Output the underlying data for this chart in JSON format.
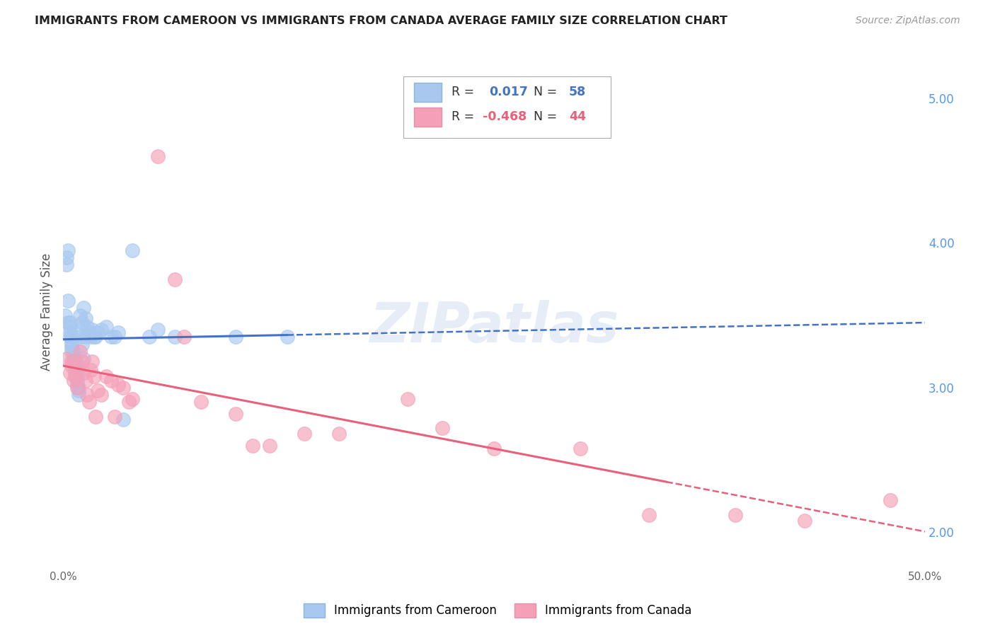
{
  "title": "IMMIGRANTS FROM CAMEROON VS IMMIGRANTS FROM CANADA AVERAGE FAMILY SIZE CORRELATION CHART",
  "source": "Source: ZipAtlas.com",
  "ylabel": "Average Family Size",
  "xlim": [
    0.0,
    0.5
  ],
  "ylim": [
    1.75,
    5.3
  ],
  "yticks": [
    2.0,
    3.0,
    4.0,
    5.0
  ],
  "xticks": [
    0.0,
    0.1,
    0.2,
    0.3,
    0.4,
    0.5
  ],
  "xtick_labels": [
    "0.0%",
    "",
    "",
    "",
    "",
    "50.0%"
  ],
  "ytick_labels_right": [
    "2.00",
    "3.00",
    "4.00",
    "5.00"
  ],
  "watermark": "ZIPatlas",
  "background_color": "#ffffff",
  "grid_color": "#d0d0d0",
  "cameroon_color": "#a8c8f0",
  "canada_color": "#f5a0b8",
  "cameroon_line_color": "#4472c4",
  "canada_line_color": "#e8607a",
  "R_cameroon": 0.017,
  "N_cameroon": 58,
  "R_canada": -0.468,
  "N_canada": 44,
  "cameroon_x": [
    0.001,
    0.002,
    0.002,
    0.003,
    0.003,
    0.003,
    0.004,
    0.004,
    0.004,
    0.004,
    0.005,
    0.005,
    0.005,
    0.005,
    0.005,
    0.006,
    0.006,
    0.006,
    0.006,
    0.007,
    0.007,
    0.007,
    0.007,
    0.008,
    0.008,
    0.008,
    0.008,
    0.009,
    0.009,
    0.009,
    0.01,
    0.01,
    0.01,
    0.011,
    0.011,
    0.012,
    0.012,
    0.013,
    0.013,
    0.014,
    0.015,
    0.016,
    0.017,
    0.018,
    0.019,
    0.02,
    0.022,
    0.025,
    0.028,
    0.03,
    0.032,
    0.035,
    0.04,
    0.05,
    0.055,
    0.065,
    0.1,
    0.13
  ],
  "cameroon_y": [
    3.5,
    3.85,
    3.9,
    3.95,
    3.6,
    3.45,
    3.45,
    3.42,
    3.38,
    3.35,
    3.35,
    3.32,
    3.3,
    3.28,
    3.25,
    3.25,
    3.22,
    3.2,
    3.18,
    3.18,
    3.15,
    3.12,
    3.1,
    3.1,
    3.08,
    3.05,
    3.02,
    3.0,
    2.98,
    2.95,
    3.5,
    3.4,
    3.35,
    3.45,
    3.3,
    3.55,
    3.2,
    3.48,
    3.35,
    3.42,
    3.38,
    3.35,
    3.4,
    3.35,
    3.35,
    3.38,
    3.4,
    3.42,
    3.35,
    3.35,
    3.38,
    2.78,
    3.95,
    3.35,
    3.4,
    3.35,
    3.35,
    3.35
  ],
  "canada_x": [
    0.002,
    0.004,
    0.005,
    0.005,
    0.006,
    0.007,
    0.008,
    0.009,
    0.01,
    0.011,
    0.012,
    0.013,
    0.014,
    0.015,
    0.016,
    0.017,
    0.018,
    0.019,
    0.02,
    0.022,
    0.025,
    0.028,
    0.03,
    0.032,
    0.035,
    0.038,
    0.04,
    0.055,
    0.065,
    0.07,
    0.08,
    0.1,
    0.11,
    0.12,
    0.14,
    0.16,
    0.2,
    0.22,
    0.25,
    0.3,
    0.34,
    0.39,
    0.43,
    0.48
  ],
  "canada_y": [
    3.2,
    3.1,
    3.18,
    3.15,
    3.05,
    3.08,
    3.0,
    3.15,
    3.25,
    3.18,
    3.1,
    3.05,
    2.95,
    2.9,
    3.12,
    3.18,
    3.08,
    2.8,
    2.98,
    2.95,
    3.08,
    3.05,
    2.8,
    3.02,
    3.0,
    2.9,
    2.92,
    4.6,
    3.75,
    3.35,
    2.9,
    2.82,
    2.6,
    2.6,
    2.68,
    2.68,
    2.92,
    2.72,
    2.58,
    2.58,
    2.12,
    2.12,
    2.08,
    2.22
  ]
}
